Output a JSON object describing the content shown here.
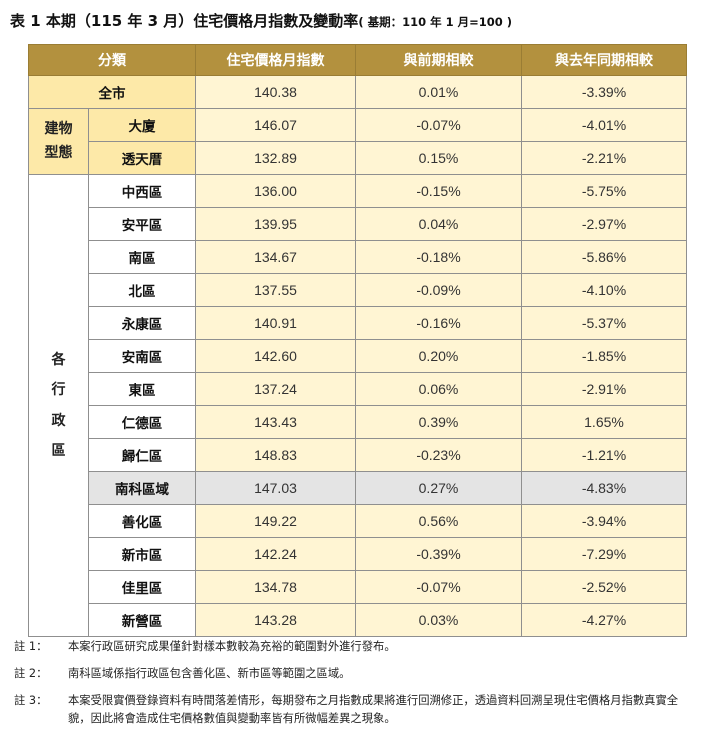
{
  "title": {
    "main": "表 1 本期（115 年 3 月）住宅價格月指數及變動率",
    "sub": "( 基期：110 年 1 月=100 )"
  },
  "table": {
    "headers": [
      "分類",
      "住宅價格月指數",
      "與前期相較",
      "與去年同期相較"
    ],
    "all_city": {
      "label": "全市",
      "index": "140.38",
      "mom": "0.01%",
      "yoy": "-3.39%"
    },
    "building_group_label": [
      "建物",
      "型態"
    ],
    "building_rows": [
      {
        "label": "大廈",
        "index": "146.07",
        "mom": "-0.07%",
        "yoy": "-4.01%"
      },
      {
        "label": "透天厝",
        "index": "132.89",
        "mom": "0.15%",
        "yoy": "-2.21%"
      }
    ],
    "district_group_label": [
      "各",
      "行",
      "政",
      "區"
    ],
    "district_rows": [
      {
        "label": "中西區",
        "index": "136.00",
        "mom": "-0.15%",
        "yoy": "-5.75%"
      },
      {
        "label": "安平區",
        "index": "139.95",
        "mom": "0.04%",
        "yoy": "-2.97%"
      },
      {
        "label": "南區",
        "index": "134.67",
        "mom": "-0.18%",
        "yoy": "-5.86%"
      },
      {
        "label": "北區",
        "index": "137.55",
        "mom": "-0.09%",
        "yoy": "-4.10%"
      },
      {
        "label": "永康區",
        "index": "140.91",
        "mom": "-0.16%",
        "yoy": "-5.37%"
      },
      {
        "label": "安南區",
        "index": "142.60",
        "mom": "0.20%",
        "yoy": "-1.85%"
      },
      {
        "label": "東區",
        "index": "137.24",
        "mom": "0.06%",
        "yoy": "-2.91%"
      },
      {
        "label": "仁德區",
        "index": "143.43",
        "mom": "0.39%",
        "yoy": "1.65%"
      },
      {
        "label": "歸仁區",
        "index": "148.83",
        "mom": "-0.23%",
        "yoy": "-1.21%"
      },
      {
        "label": "南科區域",
        "index": "147.03",
        "mom": "0.27%",
        "yoy": "-4.83%"
      },
      {
        "label": "善化區",
        "index": "149.22",
        "mom": "0.56%",
        "yoy": "-3.94%"
      },
      {
        "label": "新市區",
        "index": "142.24",
        "mom": "-0.39%",
        "yoy": "-7.29%"
      },
      {
        "label": "佳里區",
        "index": "134.78",
        "mom": "-0.07%",
        "yoy": "-2.52%"
      },
      {
        "label": "新營區",
        "index": "143.28",
        "mom": "0.03%",
        "yoy": "-4.27%"
      }
    ]
  },
  "notes": [
    {
      "label": "註 1：",
      "text": "本案行政區研究成果僅針對樣本數較為充裕的範圍對外進行發布。"
    },
    {
      "label": "註 2：",
      "text": "南科區域係指行政區包含善化區、新市區等範圍之區域。"
    },
    {
      "label": "註 3：",
      "text": "本案受限實價登錄資料有時間落差情形，每期發布之月指數成果將進行回溯修正，透過資料回溯呈現住宅價格月指數真實全貌，因此將會造成住宅價格數值與變動率皆有所微幅差異之現象。"
    }
  ],
  "colors": {
    "header_bg": "#b3913e",
    "highlight_yellow": "#fde9a8",
    "light_yellow": "#fff5d3",
    "gray_row": "#e4e4e4"
  }
}
